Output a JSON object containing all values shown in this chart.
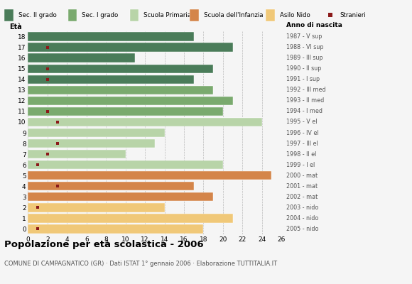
{
  "title": "Popolazione per età scolastica - 2006",
  "subtitle": "COMUNE DI CAMPAGNATICO (GR) · Dati ISTAT 1° gennaio 2006 · Elaborazione TUTTITALIA.IT",
  "ages": [
    18,
    17,
    16,
    15,
    14,
    13,
    12,
    11,
    10,
    9,
    8,
    7,
    6,
    5,
    4,
    3,
    2,
    1,
    0
  ],
  "right_labels": [
    "1987 - V sup",
    "1988 - VI sup",
    "1989 - III sup",
    "1990 - II sup",
    "1991 - I sup",
    "1992 - III med",
    "1993 - II med",
    "1994 - I med",
    "1995 - V el",
    "1996 - IV el",
    "1997 - III el",
    "1998 - II el",
    "1999 - I el",
    "2000 - mat",
    "2001 - mat",
    "2002 - mat",
    "2003 - nido",
    "2004 - nido",
    "2005 - nido"
  ],
  "bar_values": [
    17,
    21,
    11,
    19,
    17,
    19,
    21,
    20,
    24,
    14,
    13,
    10,
    20,
    25,
    17,
    19,
    14,
    21,
    18
  ],
  "stranieri_values": [
    0,
    2,
    0,
    2,
    2,
    0,
    0,
    2,
    3,
    0,
    3,
    2,
    1,
    0,
    3,
    0,
    1,
    0,
    1
  ],
  "bar_colors": [
    "#4a7c59",
    "#4a7c59",
    "#4a7c59",
    "#4a7c59",
    "#4a7c59",
    "#7aaa6e",
    "#7aaa6e",
    "#7aaa6e",
    "#b8d4a8",
    "#b8d4a8",
    "#b8d4a8",
    "#b8d4a8",
    "#b8d4a8",
    "#d4854a",
    "#d4854a",
    "#d4854a",
    "#f0c878",
    "#f0c878",
    "#f0c878"
  ],
  "legend_labels": [
    "Sec. II grado",
    "Sec. I grado",
    "Scuola Primaria",
    "Scuola dell'Infanzia",
    "Asilo Nido",
    "Stranieri"
  ],
  "legend_colors": [
    "#4a7c59",
    "#7aaa6e",
    "#b8d4a8",
    "#d4854a",
    "#f0c878",
    "#8b1a1a"
  ],
  "stranieri_color": "#8b1a1a",
  "bg_color": "#f5f5f5",
  "bar_height": 0.82,
  "grid_color": "#bbbbbb",
  "xticks": [
    0,
    2,
    4,
    6,
    8,
    10,
    12,
    14,
    16,
    18,
    20,
    22,
    24,
    26
  ],
  "xlim": [
    0,
    26
  ]
}
